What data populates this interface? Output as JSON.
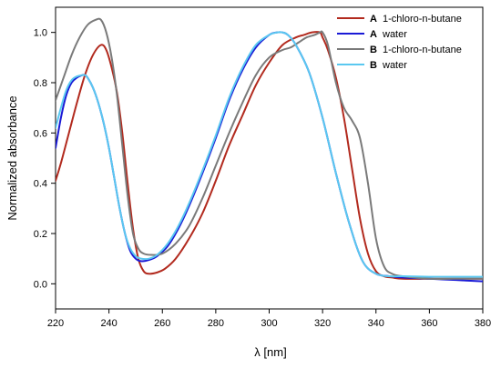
{
  "chart_data": {
    "type": "line",
    "xlabel": "λ [nm]",
    "ylabel": "Normalized absorbance",
    "xlim": [
      220,
      380
    ],
    "ylim": [
      -0.1,
      1.1
    ],
    "xticks": [
      220,
      240,
      260,
      280,
      300,
      320,
      340,
      360,
      380
    ],
    "yticks": [
      0.0,
      0.2,
      0.4,
      0.6,
      0.8,
      1.0
    ],
    "xtick_labels": [
      "220",
      "240",
      "260",
      "280",
      "300",
      "320",
      "340",
      "360",
      "380"
    ],
    "ytick_labels": [
      "0.0",
      "0.2",
      "0.4",
      "0.6",
      "0.8",
      "1.0"
    ],
    "grid": false,
    "legend_position": "top-right",
    "series": [
      {
        "name": "1-chloro-n-butane",
        "group": "A",
        "color": "#b22a1e",
        "x": [
          220,
          222,
          225,
          228,
          231,
          234,
          237,
          239,
          241,
          243,
          245,
          247,
          249,
          251,
          253,
          255,
          258,
          261,
          265,
          270,
          275,
          280,
          285,
          290,
          295,
          300,
          305,
          310,
          313,
          316,
          319,
          320,
          322,
          325,
          328,
          331,
          334,
          337,
          340,
          343,
          346,
          350,
          360,
          370,
          380
        ],
        "y": [
          0.41,
          0.48,
          0.6,
          0.72,
          0.83,
          0.91,
          0.95,
          0.93,
          0.86,
          0.76,
          0.6,
          0.4,
          0.22,
          0.1,
          0.05,
          0.04,
          0.045,
          0.06,
          0.1,
          0.18,
          0.28,
          0.41,
          0.55,
          0.67,
          0.79,
          0.88,
          0.95,
          0.98,
          0.99,
          1.0,
          1.0,
          0.98,
          0.93,
          0.82,
          0.66,
          0.46,
          0.26,
          0.12,
          0.05,
          0.03,
          0.025,
          0.02,
          0.02,
          0.02,
          0.02
        ]
      },
      {
        "name": "water",
        "group": "A",
        "color": "#1a1ad6",
        "x": [
          220,
          222,
          224,
          226,
          228,
          230,
          231,
          232,
          234,
          236,
          238,
          240,
          242,
          244,
          246,
          248,
          250,
          252,
          255,
          258,
          262,
          266,
          270,
          275,
          280,
          285,
          290,
          295,
          300,
          303,
          305,
          307,
          310,
          315,
          320,
          325,
          330,
          335,
          340,
          345,
          350,
          360,
          370,
          380
        ],
        "y": [
          0.54,
          0.66,
          0.75,
          0.8,
          0.82,
          0.83,
          0.83,
          0.82,
          0.78,
          0.72,
          0.64,
          0.54,
          0.42,
          0.3,
          0.2,
          0.13,
          0.1,
          0.09,
          0.095,
          0.11,
          0.15,
          0.22,
          0.31,
          0.44,
          0.58,
          0.73,
          0.85,
          0.94,
          0.99,
          1.0,
          1.0,
          0.99,
          0.95,
          0.84,
          0.66,
          0.44,
          0.24,
          0.09,
          0.04,
          0.03,
          0.025,
          0.02,
          0.015,
          0.01
        ]
      },
      {
        "name": "1-chloro-n-butane",
        "group": "B",
        "color": "#7a7a7a",
        "x": [
          220,
          223,
          226,
          229,
          232,
          235,
          237,
          239,
          241,
          243,
          245,
          247,
          249,
          251,
          253,
          256,
          260,
          265,
          270,
          275,
          280,
          285,
          290,
          295,
          300,
          305,
          308,
          311,
          314,
          317,
          319,
          320,
          322,
          325,
          328,
          331,
          334,
          337,
          340,
          343,
          346,
          350,
          360,
          370,
          380
        ],
        "y": [
          0.73,
          0.82,
          0.91,
          0.98,
          1.03,
          1.05,
          1.05,
          1.0,
          0.9,
          0.75,
          0.55,
          0.35,
          0.2,
          0.14,
          0.12,
          0.115,
          0.12,
          0.16,
          0.23,
          0.34,
          0.47,
          0.6,
          0.72,
          0.83,
          0.9,
          0.93,
          0.94,
          0.96,
          0.98,
          0.99,
          1.0,
          1.0,
          0.95,
          0.8,
          0.7,
          0.65,
          0.58,
          0.4,
          0.18,
          0.07,
          0.04,
          0.03,
          0.02,
          0.02,
          0.02
        ]
      },
      {
        "name": "water",
        "group": "B",
        "color": "#5ac8f0",
        "x": [
          220,
          222,
          224,
          226,
          228,
          230,
          231,
          232,
          234,
          236,
          238,
          240,
          242,
          244,
          246,
          248,
          250,
          252,
          255,
          258,
          262,
          266,
          270,
          275,
          280,
          285,
          290,
          295,
          300,
          303,
          305,
          307,
          310,
          315,
          320,
          325,
          330,
          335,
          340,
          345,
          350,
          360,
          370,
          380
        ],
        "y": [
          0.62,
          0.7,
          0.77,
          0.81,
          0.825,
          0.83,
          0.83,
          0.82,
          0.78,
          0.72,
          0.64,
          0.54,
          0.42,
          0.3,
          0.2,
          0.14,
          0.11,
          0.1,
          0.1,
          0.115,
          0.16,
          0.23,
          0.32,
          0.45,
          0.59,
          0.74,
          0.86,
          0.95,
          0.99,
          1.0,
          1.0,
          0.99,
          0.95,
          0.84,
          0.66,
          0.44,
          0.24,
          0.09,
          0.04,
          0.03,
          0.03,
          0.028,
          0.028,
          0.028
        ]
      }
    ]
  }
}
